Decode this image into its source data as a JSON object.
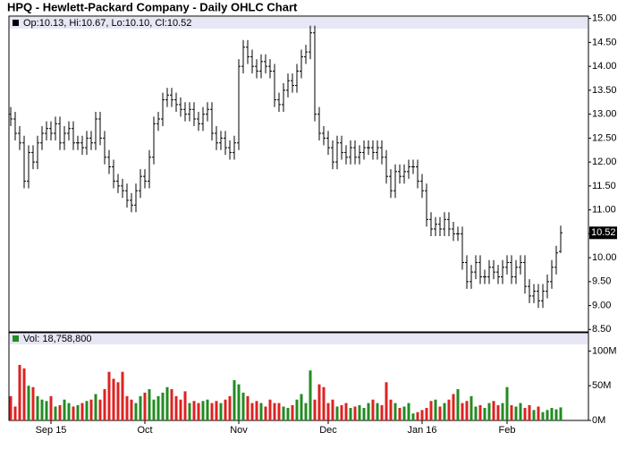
{
  "chart_data": {
    "type": "ohlc",
    "title": "HPQ - Hewlett-Packard Company - Daily OHLC Chart",
    "price_legend": "Op:10.13, Hi:10.67, Lo:10.10, Cl:10.52",
    "volume_legend": "Vol: 18,758,800",
    "categories": [
      null,
      null,
      null,
      null,
      null,
      null,
      null,
      null,
      null,
      "Sep 15",
      null,
      null,
      null,
      null,
      null,
      null,
      null,
      null,
      null,
      null,
      null,
      null,
      null,
      null,
      null,
      null,
      null,
      null,
      null,
      null,
      "Oct",
      null,
      null,
      null,
      null,
      null,
      null,
      null,
      null,
      null,
      null,
      null,
      null,
      null,
      null,
      null,
      null,
      null,
      null,
      null,
      null,
      "Nov",
      null,
      null,
      null,
      null,
      null,
      null,
      null,
      null,
      null,
      null,
      null,
      null,
      null,
      null,
      null,
      null,
      null,
      null,
      null,
      "Dec",
      null,
      null,
      null,
      null,
      null,
      null,
      null,
      null,
      null,
      null,
      null,
      null,
      null,
      null,
      null,
      null,
      null,
      null,
      null,
      null,
      "Jan 16",
      null,
      null,
      null,
      null,
      null,
      null,
      null,
      null,
      null,
      null,
      null,
      null,
      null,
      null,
      null,
      null,
      null,
      null,
      "Feb",
      null,
      null,
      null,
      null,
      null,
      null,
      null,
      null,
      null,
      null,
      null,
      null
    ],
    "open": [
      13.0,
      12.9,
      12.6,
      12.4,
      11.6,
      12.2,
      12.0,
      12.4,
      12.6,
      12.7,
      12.6,
      12.8,
      12.4,
      12.6,
      12.7,
      12.4,
      12.4,
      12.3,
      12.5,
      12.4,
      12.9,
      12.5,
      12.1,
      11.9,
      11.6,
      11.5,
      11.4,
      11.2,
      11.1,
      11.4,
      11.7,
      11.6,
      12.1,
      12.8,
      12.9,
      13.3,
      13.4,
      13.3,
      13.2,
      13.1,
      13.0,
      13.1,
      12.9,
      12.8,
      13.0,
      13.1,
      12.6,
      12.4,
      12.5,
      12.3,
      12.2,
      12.4,
      14.0,
      14.4,
      14.2,
      14.0,
      13.9,
      14.1,
      14.0,
      13.9,
      13.3,
      13.2,
      13.5,
      13.7,
      13.6,
      13.9,
      14.2,
      14.3,
      14.7,
      13.0,
      12.6,
      12.5,
      12.3,
      12.0,
      12.4,
      12.2,
      12.1,
      12.3,
      12.1,
      12.2,
      12.3,
      12.3,
      12.2,
      12.3,
      12.1,
      11.7,
      11.4,
      11.8,
      11.7,
      11.8,
      11.9,
      11.9,
      11.6,
      11.4,
      10.8,
      10.6,
      10.7,
      10.6,
      10.8,
      10.6,
      10.5,
      10.5,
      9.9,
      9.5,
      9.7,
      9.9,
      9.6,
      9.6,
      9.8,
      9.7,
      9.6,
      9.8,
      9.9,
      9.6,
      9.8,
      9.9,
      9.4,
      9.2,
      9.3,
      9.1,
      9.3,
      9.5,
      9.8,
      10.13
    ],
    "high": [
      13.15,
      13.05,
      12.75,
      12.55,
      12.35,
      12.35,
      12.55,
      12.75,
      12.85,
      12.85,
      12.95,
      12.95,
      12.75,
      12.85,
      12.85,
      12.55,
      12.55,
      12.65,
      12.65,
      13.05,
      13.05,
      12.65,
      12.25,
      12.05,
      11.75,
      11.65,
      11.55,
      11.35,
      11.55,
      11.85,
      11.85,
      12.25,
      12.95,
      13.05,
      13.45,
      13.55,
      13.55,
      13.45,
      13.35,
      13.25,
      13.25,
      13.25,
      13.05,
      13.15,
      13.25,
      13.25,
      12.75,
      12.65,
      12.65,
      12.45,
      12.55,
      14.15,
      14.55,
      14.55,
      14.35,
      14.15,
      14.25,
      14.25,
      14.15,
      14.05,
      13.45,
      13.65,
      13.85,
      13.85,
      14.05,
      14.35,
      14.45,
      14.85,
      14.85,
      13.15,
      12.75,
      12.65,
      12.45,
      12.55,
      12.55,
      12.35,
      12.45,
      12.45,
      12.35,
      12.45,
      12.45,
      12.45,
      12.45,
      12.45,
      12.25,
      11.85,
      11.95,
      11.95,
      11.95,
      12.05,
      12.05,
      12.05,
      11.75,
      11.55,
      10.95,
      10.85,
      10.85,
      10.95,
      10.95,
      10.75,
      10.65,
      10.65,
      10.05,
      9.85,
      10.05,
      10.05,
      9.75,
      9.95,
      9.95,
      9.85,
      9.95,
      10.05,
      10.05,
      9.95,
      10.05,
      10.05,
      9.55,
      9.45,
      9.45,
      9.45,
      9.65,
      9.95,
      10.25,
      10.67
    ],
    "low": [
      12.75,
      12.45,
      12.25,
      11.45,
      11.45,
      11.85,
      11.85,
      12.25,
      12.45,
      12.45,
      12.45,
      12.25,
      12.25,
      12.45,
      12.25,
      12.25,
      12.15,
      12.15,
      12.25,
      12.25,
      12.35,
      11.95,
      11.75,
      11.45,
      11.35,
      11.25,
      11.05,
      10.95,
      10.95,
      11.25,
      11.45,
      11.45,
      11.95,
      12.65,
      12.75,
      13.15,
      13.15,
      13.05,
      12.95,
      12.85,
      12.85,
      12.75,
      12.65,
      12.65,
      12.85,
      12.45,
      12.25,
      12.25,
      12.15,
      12.05,
      12.05,
      12.25,
      13.85,
      14.05,
      13.85,
      13.75,
      13.75,
      13.85,
      13.75,
      13.15,
      13.05,
      13.05,
      13.35,
      13.45,
      13.45,
      13.75,
      14.05,
      14.15,
      12.85,
      12.45,
      12.35,
      12.15,
      11.85,
      11.85,
      12.05,
      11.95,
      11.95,
      11.95,
      11.95,
      12.05,
      12.15,
      12.05,
      12.05,
      11.95,
      11.55,
      11.25,
      11.25,
      11.55,
      11.55,
      11.65,
      11.75,
      11.45,
      11.25,
      10.65,
      10.45,
      10.45,
      10.45,
      10.45,
      10.45,
      10.35,
      10.35,
      9.75,
      9.35,
      9.35,
      9.55,
      9.45,
      9.45,
      9.45,
      9.55,
      9.45,
      9.45,
      9.65,
      9.45,
      9.45,
      9.65,
      9.25,
      9.05,
      9.05,
      8.95,
      8.95,
      9.15,
      9.35,
      9.65,
      10.1
    ],
    "close": [
      12.9,
      12.6,
      12.4,
      11.6,
      12.2,
      12.0,
      12.4,
      12.6,
      12.7,
      12.6,
      12.8,
      12.4,
      12.6,
      12.7,
      12.4,
      12.4,
      12.3,
      12.5,
      12.4,
      12.9,
      12.5,
      12.1,
      11.9,
      11.6,
      11.5,
      11.4,
      11.2,
      11.1,
      11.4,
      11.7,
      11.6,
      12.1,
      12.8,
      12.9,
      13.3,
      13.4,
      13.3,
      13.2,
      13.1,
      13.0,
      13.1,
      12.9,
      12.8,
      13.0,
      13.1,
      12.6,
      12.4,
      12.5,
      12.3,
      12.2,
      12.4,
      14.0,
      14.4,
      14.2,
      14.0,
      13.9,
      14.1,
      14.0,
      13.9,
      13.3,
      13.2,
      13.5,
      13.7,
      13.6,
      13.9,
      14.2,
      14.3,
      14.7,
      13.0,
      12.6,
      12.5,
      12.3,
      12.0,
      12.4,
      12.2,
      12.1,
      12.3,
      12.1,
      12.2,
      12.3,
      12.3,
      12.2,
      12.3,
      12.1,
      11.7,
      11.4,
      11.8,
      11.7,
      11.8,
      11.9,
      11.9,
      11.6,
      11.4,
      10.8,
      10.6,
      10.7,
      10.6,
      10.8,
      10.6,
      10.5,
      10.5,
      9.9,
      9.5,
      9.7,
      9.9,
      9.6,
      9.6,
      9.8,
      9.7,
      9.6,
      9.8,
      9.9,
      9.6,
      9.8,
      9.9,
      9.4,
      9.2,
      9.3,
      9.1,
      9.3,
      9.5,
      9.8,
      10.1,
      10.52
    ],
    "volume": [
      35,
      20,
      80,
      75,
      50,
      48,
      35,
      30,
      28,
      35,
      20,
      22,
      30,
      25,
      20,
      22,
      25,
      28,
      30,
      38,
      30,
      45,
      70,
      60,
      55,
      70,
      35,
      30,
      25,
      35,
      40,
      45,
      30,
      35,
      40,
      48,
      45,
      35,
      30,
      42,
      25,
      28,
      25,
      28,
      30,
      25,
      28,
      25,
      30,
      35,
      58,
      52,
      40,
      35,
      25,
      28,
      25,
      20,
      30,
      25,
      25,
      20,
      18,
      22,
      30,
      38,
      25,
      72,
      30,
      52,
      48,
      25,
      30,
      20,
      22,
      25,
      18,
      20,
      22,
      18,
      25,
      30,
      25,
      22,
      55,
      30,
      25,
      18,
      20,
      25,
      10,
      12,
      15,
      18,
      28,
      30,
      20,
      25,
      30,
      38,
      45,
      25,
      28,
      35,
      20,
      22,
      18,
      25,
      28,
      22,
      25,
      48,
      22,
      20,
      25,
      18,
      22,
      15,
      20,
      12,
      15,
      18,
      16,
      18.7588
    ],
    "ylim": [
      8.45,
      15.05
    ],
    "yticks": [
      {
        "value": 8.5,
        "label": "8.50"
      },
      {
        "value": 9,
        "label": "9.00"
      },
      {
        "value": 9.5,
        "label": "9.50"
      },
      {
        "value": 10,
        "label": "10.00"
      },
      {
        "value": 10.5,
        "label": "10.50"
      },
      {
        "value": 11,
        "label": "11.00"
      },
      {
        "value": 11.5,
        "label": "11.50"
      },
      {
        "value": 12,
        "label": "12.00"
      },
      {
        "value": 12.5,
        "label": "12.50"
      },
      {
        "value": 13,
        "label": "13.00"
      },
      {
        "value": 13.5,
        "label": "13.50"
      },
      {
        "value": 14,
        "label": "14.00"
      },
      {
        "value": 14.5,
        "label": "14.50"
      },
      {
        "value": 15,
        "label": "15.00"
      }
    ],
    "y2lim": [
      0,
      125
    ],
    "y2ticks": [
      {
        "value": 0,
        "label": "0M"
      },
      {
        "value": 50,
        "label": "50M"
      },
      {
        "value": 100,
        "label": "100M"
      }
    ],
    "bar_color": "#000000",
    "up_color": "#228b22",
    "down_color": "#dd2222",
    "legend_color": "#e6e6f5"
  }
}
